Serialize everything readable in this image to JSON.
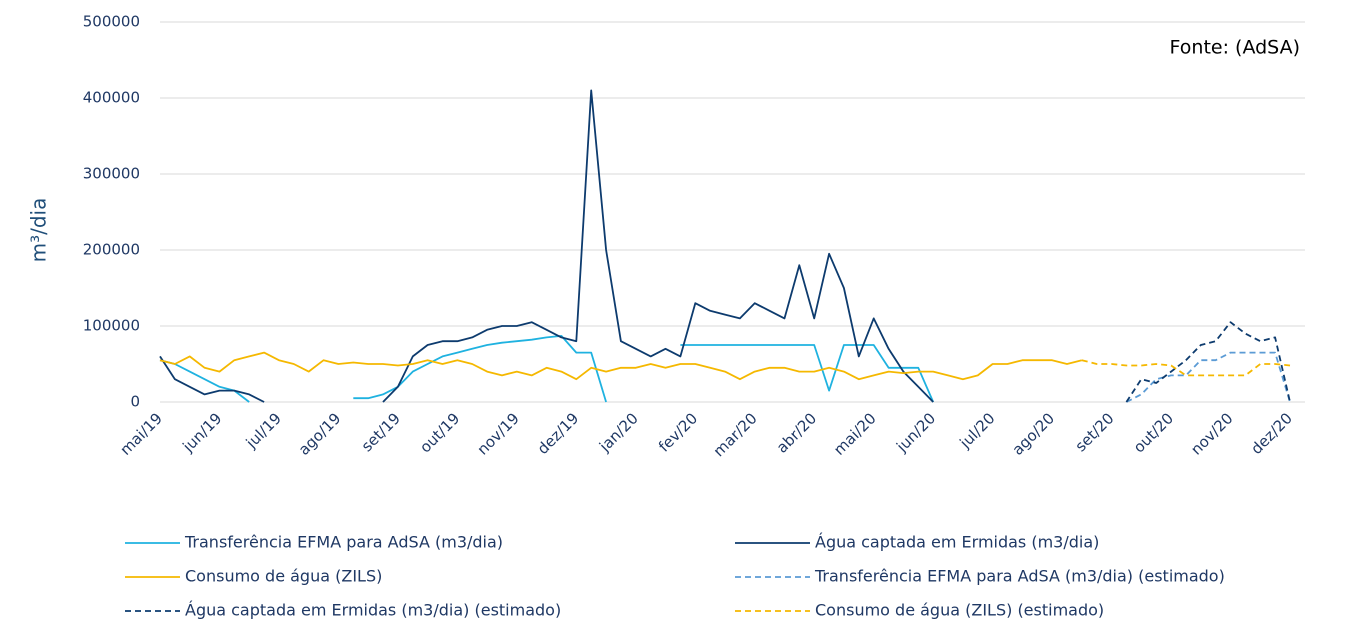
{
  "chart_data": {
    "type": "line",
    "y_label": "m³/dia",
    "annotation": "Fonte: (AdSA)",
    "ylim": [
      0,
      500000
    ],
    "yticks": [
      0,
      100000,
      200000,
      300000,
      400000,
      500000
    ],
    "grid": true,
    "legend": "bottom",
    "categories": [
      "mai/19",
      null,
      null,
      null,
      "jun/19",
      null,
      null,
      null,
      "jul/19",
      null,
      null,
      null,
      "ago/19",
      null,
      null,
      null,
      "set/19",
      null,
      null,
      null,
      "out/19",
      null,
      null,
      null,
      "nov/19",
      null,
      null,
      null,
      "dez/19",
      null,
      null,
      null,
      "jan/20",
      null,
      null,
      null,
      "fev/20",
      null,
      null,
      null,
      "mar/20",
      null,
      null,
      null,
      "abr/20",
      null,
      null,
      null,
      "mai/20",
      null,
      null,
      null,
      "jun/20",
      null,
      null,
      null,
      "jul/20",
      null,
      null,
      null,
      "ago/20",
      null,
      null,
      null,
      "set/20",
      null,
      null,
      null,
      "out/20",
      null,
      null,
      null,
      "nov/20",
      null,
      null,
      null,
      "dez/20"
    ],
    "series": [
      {
        "name": "Transferência EFMA para AdSA  (m3/dia)",
        "color": "#1fb2e0",
        "dash": "solid",
        "values": [
          55000,
          50000,
          40000,
          30000,
          20000,
          15000,
          0,
          null,
          null,
          null,
          null,
          null,
          null,
          5000,
          5000,
          10000,
          20000,
          40000,
          50000,
          60000,
          65000,
          70000,
          75000,
          78000,
          80000,
          82000,
          85000,
          87000,
          65000,
          65000,
          0,
          null,
          null,
          null,
          null,
          75000,
          75000,
          75000,
          75000,
          75000,
          75000,
          75000,
          75000,
          75000,
          75000,
          15000,
          75000,
          75000,
          75000,
          45000,
          45000,
          45000,
          0,
          null,
          null,
          null,
          null,
          null,
          null,
          null,
          null,
          null,
          null,
          null,
          null,
          null,
          null,
          null,
          null,
          null,
          null,
          null,
          null,
          null,
          null,
          null,
          null
        ]
      },
      {
        "name": "Água captada em Ermidas (m3/dia)",
        "color": "#0d3b6e",
        "dash": "solid",
        "values": [
          60000,
          30000,
          20000,
          10000,
          15000,
          15000,
          10000,
          0,
          null,
          null,
          null,
          null,
          null,
          null,
          null,
          0,
          20000,
          60000,
          75000,
          80000,
          80000,
          85000,
          95000,
          100000,
          100000,
          105000,
          95000,
          85000,
          80000,
          410000,
          200000,
          80000,
          70000,
          60000,
          70000,
          60000,
          130000,
          120000,
          115000,
          110000,
          130000,
          120000,
          110000,
          180000,
          110000,
          195000,
          150000,
          60000,
          110000,
          70000,
          40000,
          20000,
          0,
          null,
          null,
          null,
          null,
          null,
          null,
          null,
          null,
          null,
          null,
          null,
          null,
          null,
          null,
          null,
          null,
          null,
          null,
          null,
          null,
          null,
          null,
          null,
          null
        ]
      },
      {
        "name": "Consumo de água (ZILS)",
        "color": "#f5b800",
        "dash": "solid",
        "values": [
          55000,
          50000,
          60000,
          45000,
          40000,
          55000,
          60000,
          65000,
          55000,
          50000,
          40000,
          55000,
          50000,
          52000,
          50000,
          50000,
          48000,
          50000,
          55000,
          50000,
          55000,
          50000,
          40000,
          35000,
          40000,
          35000,
          45000,
          40000,
          30000,
          45000,
          40000,
          45000,
          45000,
          50000,
          45000,
          50000,
          50000,
          45000,
          40000,
          30000,
          40000,
          45000,
          45000,
          40000,
          40000,
          45000,
          40000,
          30000,
          35000,
          40000,
          38000,
          40000,
          40000,
          35000,
          30000,
          35000,
          50000,
          50000,
          55000,
          55000,
          55000,
          50000,
          55000,
          null,
          null,
          null,
          null,
          null,
          null,
          null,
          null,
          null,
          null,
          null,
          null,
          null,
          null
        ]
      },
      {
        "name": "Transferência EFMA para AdSA (m3/dia) (estimado)",
        "color": "#5b9bd5",
        "dash": "dashed",
        "values": [
          null,
          null,
          null,
          null,
          null,
          null,
          null,
          null,
          null,
          null,
          null,
          null,
          null,
          null,
          null,
          null,
          null,
          null,
          null,
          null,
          null,
          null,
          null,
          null,
          null,
          null,
          null,
          null,
          null,
          null,
          null,
          null,
          null,
          null,
          null,
          null,
          null,
          null,
          null,
          null,
          null,
          null,
          null,
          null,
          null,
          null,
          null,
          null,
          null,
          null,
          null,
          null,
          null,
          null,
          null,
          null,
          null,
          null,
          null,
          null,
          null,
          null,
          null,
          null,
          null,
          0,
          10000,
          30000,
          35000,
          35000,
          55000,
          55000,
          65000,
          65000,
          65000,
          65000,
          0
        ]
      },
      {
        "name": "Água captada em Ermidas (m3/dia) (estimado)",
        "color": "#0d3b6e",
        "dash": "dashed",
        "values": [
          null,
          null,
          null,
          null,
          null,
          null,
          null,
          null,
          null,
          null,
          null,
          null,
          null,
          null,
          null,
          null,
          null,
          null,
          null,
          null,
          null,
          null,
          null,
          null,
          null,
          null,
          null,
          null,
          null,
          null,
          null,
          null,
          null,
          null,
          null,
          null,
          null,
          null,
          null,
          null,
          null,
          null,
          null,
          null,
          null,
          null,
          null,
          null,
          null,
          null,
          null,
          null,
          null,
          null,
          null,
          null,
          null,
          null,
          null,
          null,
          null,
          null,
          null,
          null,
          null,
          0,
          30000,
          25000,
          40000,
          55000,
          75000,
          80000,
          105000,
          90000,
          80000,
          85000,
          0
        ]
      },
      {
        "name": "Consumo de água (ZILS) (estimado)",
        "color": "#f5b800",
        "dash": "dashed",
        "values": [
          null,
          null,
          null,
          null,
          null,
          null,
          null,
          null,
          null,
          null,
          null,
          null,
          null,
          null,
          null,
          null,
          null,
          null,
          null,
          null,
          null,
          null,
          null,
          null,
          null,
          null,
          null,
          null,
          null,
          null,
          null,
          null,
          null,
          null,
          null,
          null,
          null,
          null,
          null,
          null,
          null,
          null,
          null,
          null,
          null,
          null,
          null,
          null,
          null,
          null,
          null,
          null,
          null,
          null,
          null,
          null,
          null,
          null,
          null,
          null,
          null,
          null,
          55000,
          50000,
          50000,
          48000,
          48000,
          50000,
          48000,
          35000,
          35000,
          35000,
          35000,
          35000,
          50000,
          50000,
          48000
        ]
      }
    ]
  }
}
